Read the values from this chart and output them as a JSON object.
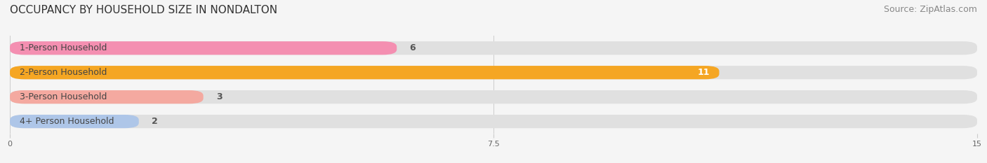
{
  "title": "OCCUPANCY BY HOUSEHOLD SIZE IN NONDALTON",
  "source": "Source: ZipAtlas.com",
  "categories": [
    "1-Person Household",
    "2-Person Household",
    "3-Person Household",
    "4+ Person Household"
  ],
  "values": [
    6,
    11,
    3,
    2
  ],
  "bar_colors": [
    "#f48fb1",
    "#f5a623",
    "#f4a9a0",
    "#aec6e8"
  ],
  "value_inside": [
    false,
    true,
    false,
    false
  ],
  "xlim": [
    0,
    15
  ],
  "xticks": [
    0,
    7.5,
    15
  ],
  "background_color": "#f5f5f5",
  "bar_background_color": "#e0e0e0",
  "title_fontsize": 11,
  "source_fontsize": 9,
  "label_fontsize": 9,
  "value_fontsize": 9,
  "bar_height": 0.55
}
